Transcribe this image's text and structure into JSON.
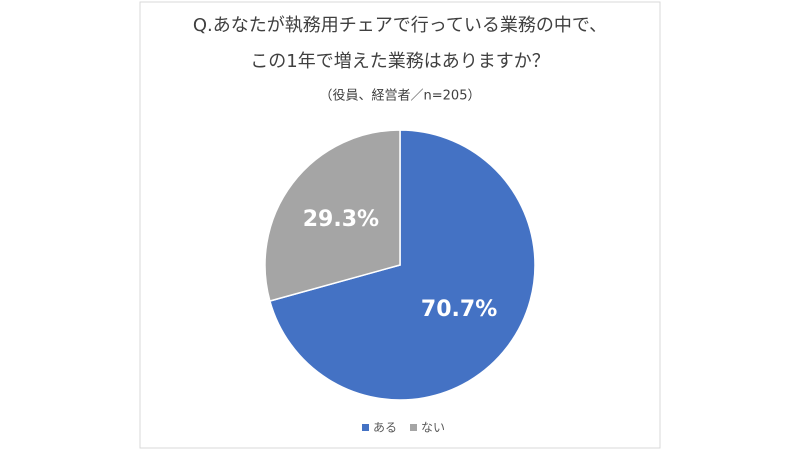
{
  "chart_data": {
    "type": "pie",
    "title": [
      "Q.あなたが執務用チェアで行っている業務の中で、",
      "この1年で増えた業務はありますか？"
    ],
    "subtitle": "（役員、経営者／n=205）",
    "categories": [
      "ある",
      "ない"
    ],
    "values": [
      70.7,
      29.3
    ],
    "value_labels": [
      "70.7%",
      "29.3%"
    ],
    "colors": [
      "#4472c4",
      "#a5a5a5"
    ]
  }
}
